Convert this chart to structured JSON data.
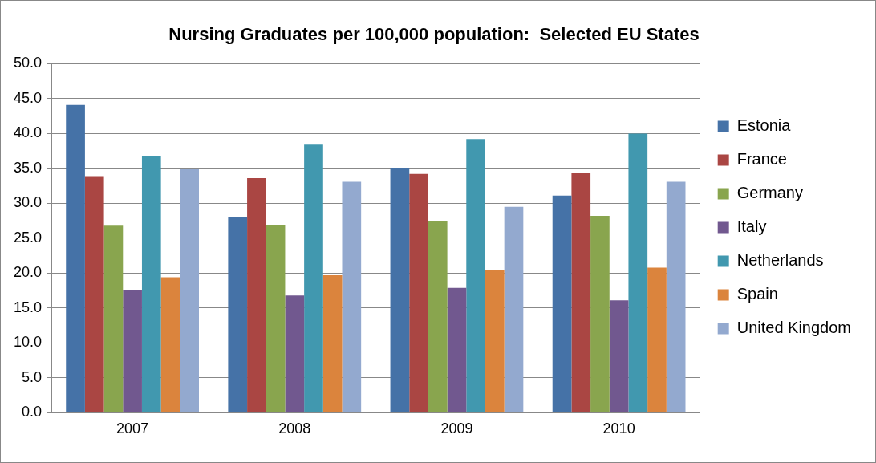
{
  "chart_data": {
    "type": "bar",
    "title": "Nursing Graduates per 100,000 population:  Selected EU States",
    "categories": [
      "2007",
      "2008",
      "2009",
      "2010"
    ],
    "series": [
      {
        "name": "Estonia",
        "color": "#4572a7",
        "values": [
          44.1,
          28.0,
          35.1,
          31.1
        ]
      },
      {
        "name": "France",
        "color": "#aa4643",
        "values": [
          33.9,
          33.6,
          34.2,
          34.3
        ]
      },
      {
        "name": "Germany",
        "color": "#89a54e",
        "values": [
          26.8,
          26.9,
          27.4,
          28.2
        ]
      },
      {
        "name": "Italy",
        "color": "#71588f",
        "values": [
          17.6,
          16.8,
          17.9,
          16.1
        ]
      },
      {
        "name": "Netherlands",
        "color": "#4198af",
        "values": [
          36.8,
          38.4,
          39.2,
          40.0
        ]
      },
      {
        "name": "Spain",
        "color": "#db843d",
        "values": [
          19.4,
          19.7,
          20.5,
          20.8
        ]
      },
      {
        "name": "United Kingdom",
        "color": "#93a9cf",
        "values": [
          34.9,
          33.1,
          29.5,
          33.1
        ]
      }
    ],
    "ylim": [
      0,
      50
    ],
    "yticks": [
      {
        "value": 0,
        "label": "0.0"
      },
      {
        "value": 5,
        "label": "5.0"
      },
      {
        "value": 10,
        "label": "10.0"
      },
      {
        "value": 15,
        "label": "15.0"
      },
      {
        "value": 20,
        "label": "20.0"
      },
      {
        "value": 25,
        "label": "25.0"
      },
      {
        "value": 30,
        "label": "30.0"
      },
      {
        "value": 35,
        "label": "35.0"
      },
      {
        "value": 40,
        "label": "40.0"
      },
      {
        "value": 45,
        "label": "45.0"
      },
      {
        "value": 50,
        "label": "50.0"
      }
    ],
    "grid": "y",
    "legend": "right"
  }
}
